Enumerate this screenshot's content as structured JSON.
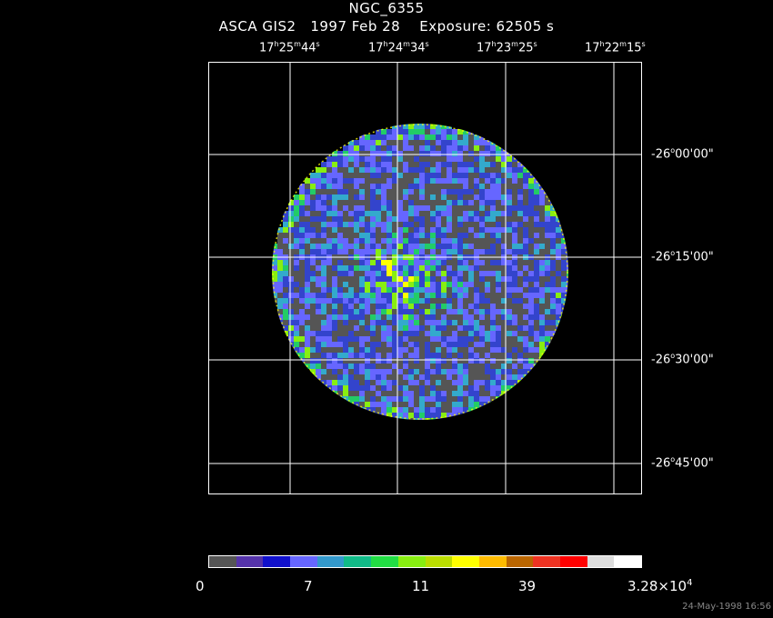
{
  "header": {
    "object": "NGC_6355",
    "instrument_line": "ASCA GIS2   1997 Feb 28    Exposure: 62505 s"
  },
  "ra_ticks": [
    {
      "h": "17",
      "m": "25",
      "s": "44"
    },
    {
      "h": "17",
      "m": "24",
      "s": "34"
    },
    {
      "h": "17",
      "m": "23",
      "s": "25"
    },
    {
      "h": "17",
      "m": "22",
      "s": "15"
    }
  ],
  "dec_ticks": [
    {
      "d": "-26",
      "m": "00",
      "s": "00"
    },
    {
      "d": "-26",
      "m": "15",
      "s": "00"
    },
    {
      "d": "-26",
      "m": "30",
      "s": "00"
    },
    {
      "d": "-26",
      "m": "45",
      "s": "00"
    }
  ],
  "colorbar": {
    "labels": [
      "0",
      "7",
      "11",
      "39",
      "3.28×10"
    ],
    "exponent": "4",
    "colors": [
      "#555555",
      "#5533aa",
      "#1111cc",
      "#6666ff",
      "#3399cc",
      "#11bb88",
      "#22dd44",
      "#88ee11",
      "#bbdd00",
      "#ffff00",
      "#ffbb00",
      "#bb6600",
      "#ee3322",
      "#ff0000",
      "#dddddd",
      "#ffffff"
    ]
  },
  "footer": "24-May-1998 16:56"
}
